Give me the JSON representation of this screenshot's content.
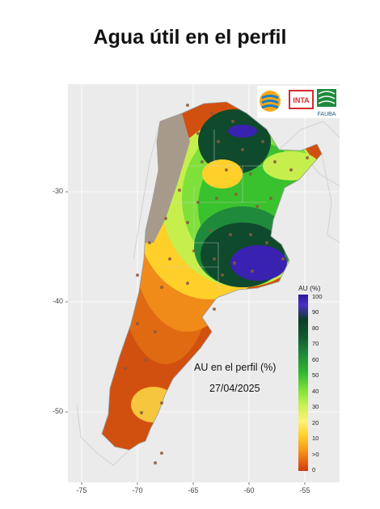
{
  "title": "Agua útil en el perfil",
  "annotation": {
    "line1": "AU en el perfil (%)",
    "line2": "27/04/2025"
  },
  "axes": {
    "y_ticks": [
      "-30",
      "-40",
      "-50"
    ],
    "x_ticks": [
      "-75",
      "-70",
      "-65",
      "-60",
      "-55"
    ]
  },
  "legend": {
    "title": "AU (%)",
    "labels": [
      "100",
      "90",
      "80",
      "70",
      "60",
      "50",
      "40",
      "30",
      "20",
      "10",
      ">0",
      "0"
    ]
  },
  "logos": {
    "fauba_label": "FAUBA",
    "inta_label": "INTA"
  },
  "colors": {
    "very_wet": "#3a22b0",
    "wet": "#0f4a2c",
    "moist": "#39c22e",
    "medium": "#c6ef4e",
    "dry_yellow": "#ffe34a",
    "dry_orange": "#f08a18",
    "very_dry": "#d2500f",
    "no_data": "#a89a8a"
  }
}
